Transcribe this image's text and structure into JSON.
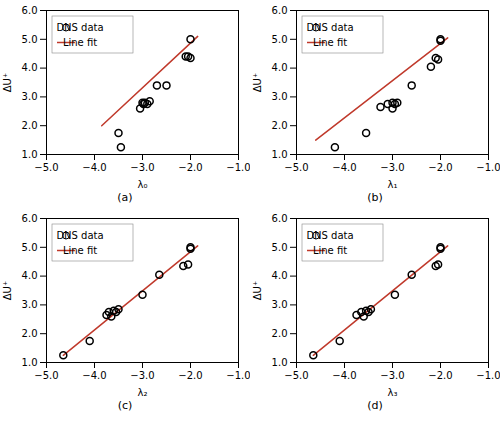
{
  "chart_data": [
    {
      "type": "scatter",
      "title": "(a)",
      "xlabel": "λ₀",
      "ylabel": "ΔU⁺",
      "xlim": [
        -5,
        -1
      ],
      "ylim": [
        1,
        6
      ],
      "xticks": [
        -5,
        -4,
        -3,
        -2,
        -1
      ],
      "yticks": [
        1,
        2,
        3,
        4,
        5,
        6
      ],
      "grid": false,
      "legend": "upper left",
      "series": [
        {
          "name": "DNS data",
          "type": "scatter",
          "marker": "circle",
          "color": "black",
          "x": [
            -3.5,
            -3.45,
            -3.05,
            -3.0,
            -2.98,
            -2.95,
            -2.9,
            -2.85,
            -2.7,
            -2.5,
            -2.1,
            -2.05,
            -2.0,
            -2.0
          ],
          "values": [
            1.75,
            1.25,
            2.6,
            2.8,
            2.75,
            2.8,
            2.75,
            2.85,
            3.4,
            3.4,
            4.4,
            4.4,
            5.0,
            4.35
          ]
        },
        {
          "name": "Line fit",
          "type": "line",
          "line_style": "solid",
          "color": "#c0392b",
          "x": [
            -3.85,
            -1.85
          ],
          "values": [
            2.0,
            5.1
          ]
        }
      ]
    },
    {
      "type": "scatter",
      "title": "(b)",
      "xlabel": "λ₁",
      "ylabel": "ΔU⁺",
      "xlim": [
        -5,
        -1
      ],
      "ylim": [
        1,
        6
      ],
      "xticks": [
        -5,
        -4,
        -3,
        -2,
        -1
      ],
      "yticks": [
        1,
        2,
        3,
        4,
        5,
        6
      ],
      "grid": false,
      "legend": "upper left",
      "series": [
        {
          "name": "DNS data",
          "type": "scatter",
          "marker": "circle",
          "color": "black",
          "x": [
            -4.2,
            -3.55,
            -3.25,
            -3.1,
            -3.0,
            -3.0,
            -2.95,
            -2.9,
            -2.6,
            -2.2,
            -2.1,
            -2.05,
            -2.0,
            -2.0
          ],
          "values": [
            1.25,
            1.75,
            2.65,
            2.75,
            2.6,
            2.8,
            2.75,
            2.8,
            3.4,
            4.05,
            4.35,
            4.3,
            5.0,
            4.95
          ]
        },
        {
          "name": "Line fit",
          "type": "line",
          "line_style": "solid",
          "color": "#c0392b",
          "x": [
            -4.6,
            -1.85
          ],
          "values": [
            1.5,
            5.05
          ]
        }
      ]
    },
    {
      "type": "scatter",
      "title": "(c)",
      "xlabel": "λ₂",
      "ylabel": "ΔU⁺",
      "xlim": [
        -5,
        -1
      ],
      "ylim": [
        1,
        6
      ],
      "xticks": [
        -5,
        -4,
        -3,
        -2,
        -1
      ],
      "yticks": [
        1,
        2,
        3,
        4,
        5,
        6
      ],
      "grid": false,
      "legend": "upper left",
      "series": [
        {
          "name": "DNS data",
          "type": "scatter",
          "marker": "circle",
          "color": "black",
          "x": [
            -4.65,
            -4.1,
            -3.75,
            -3.7,
            -3.65,
            -3.6,
            -3.55,
            -3.5,
            -3.0,
            -2.65,
            -2.15,
            -2.05,
            -2.0,
            -2.0
          ],
          "values": [
            1.25,
            1.75,
            2.65,
            2.75,
            2.6,
            2.8,
            2.75,
            2.85,
            3.35,
            4.05,
            4.35,
            4.4,
            5.0,
            4.95
          ]
        },
        {
          "name": "Line fit",
          "type": "line",
          "line_style": "solid",
          "color": "#c0392b",
          "x": [
            -4.65,
            -1.85
          ],
          "values": [
            1.25,
            5.05
          ]
        }
      ]
    },
    {
      "type": "scatter",
      "title": "(d)",
      "xlabel": "λ₃",
      "ylabel": "ΔU⁺",
      "xlim": [
        -5,
        -1
      ],
      "ylim": [
        1,
        6
      ],
      "xticks": [
        -5,
        -4,
        -3,
        -2,
        -1
      ],
      "yticks": [
        1,
        2,
        3,
        4,
        5,
        6
      ],
      "grid": false,
      "legend": "upper left",
      "series": [
        {
          "name": "DNS data",
          "type": "scatter",
          "marker": "circle",
          "color": "black",
          "x": [
            -4.65,
            -4.1,
            -3.75,
            -3.65,
            -3.6,
            -3.55,
            -3.5,
            -3.45,
            -2.95,
            -2.6,
            -2.1,
            -2.05,
            -2.0,
            -2.0
          ],
          "values": [
            1.25,
            1.75,
            2.65,
            2.75,
            2.6,
            2.8,
            2.75,
            2.85,
            3.35,
            4.05,
            4.35,
            4.4,
            5.0,
            4.95
          ]
        },
        {
          "name": "Line fit",
          "type": "line",
          "line_style": "solid",
          "color": "#c0392b",
          "x": [
            -4.65,
            -1.85
          ],
          "values": [
            1.25,
            5.05
          ]
        }
      ]
    }
  ]
}
